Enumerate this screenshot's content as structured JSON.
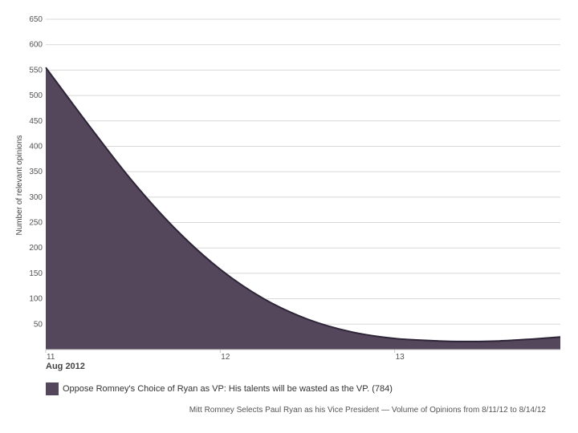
{
  "chart_data": {
    "type": "area",
    "ylabel": "Number of relevant opinions",
    "xlabel": "Aug 2012",
    "ylim": [
      0,
      650
    ],
    "y_ticks": [
      "50",
      "100",
      "150",
      "200",
      "250",
      "300",
      "350",
      "400",
      "450",
      "500",
      "550",
      "600",
      "650"
    ],
    "x_ticks": [
      "11",
      "12",
      "13"
    ],
    "x_range": [
      11,
      13.95
    ],
    "grid": true,
    "legend_position": "bottom-left",
    "series": [
      {
        "name": "Oppose Romney's Choice of Ryan as VP: His talents will be wasted as the VP. (784)",
        "color": "#54475c",
        "line_color": "#2e2438",
        "x": [
          11.0,
          11.25,
          11.5,
          11.75,
          12.0,
          12.25,
          12.5,
          12.75,
          13.0,
          13.25,
          13.4,
          13.6,
          13.8,
          13.95
        ],
        "y": [
          555,
          440,
          330,
          235,
          158,
          100,
          60,
          35,
          22,
          17,
          16,
          17,
          21,
          25
        ]
      }
    ]
  },
  "caption": "Mitt Romney Selects Paul Ryan as his Vice President — Volume of Opinions from 8/11/12 to 8/14/12"
}
